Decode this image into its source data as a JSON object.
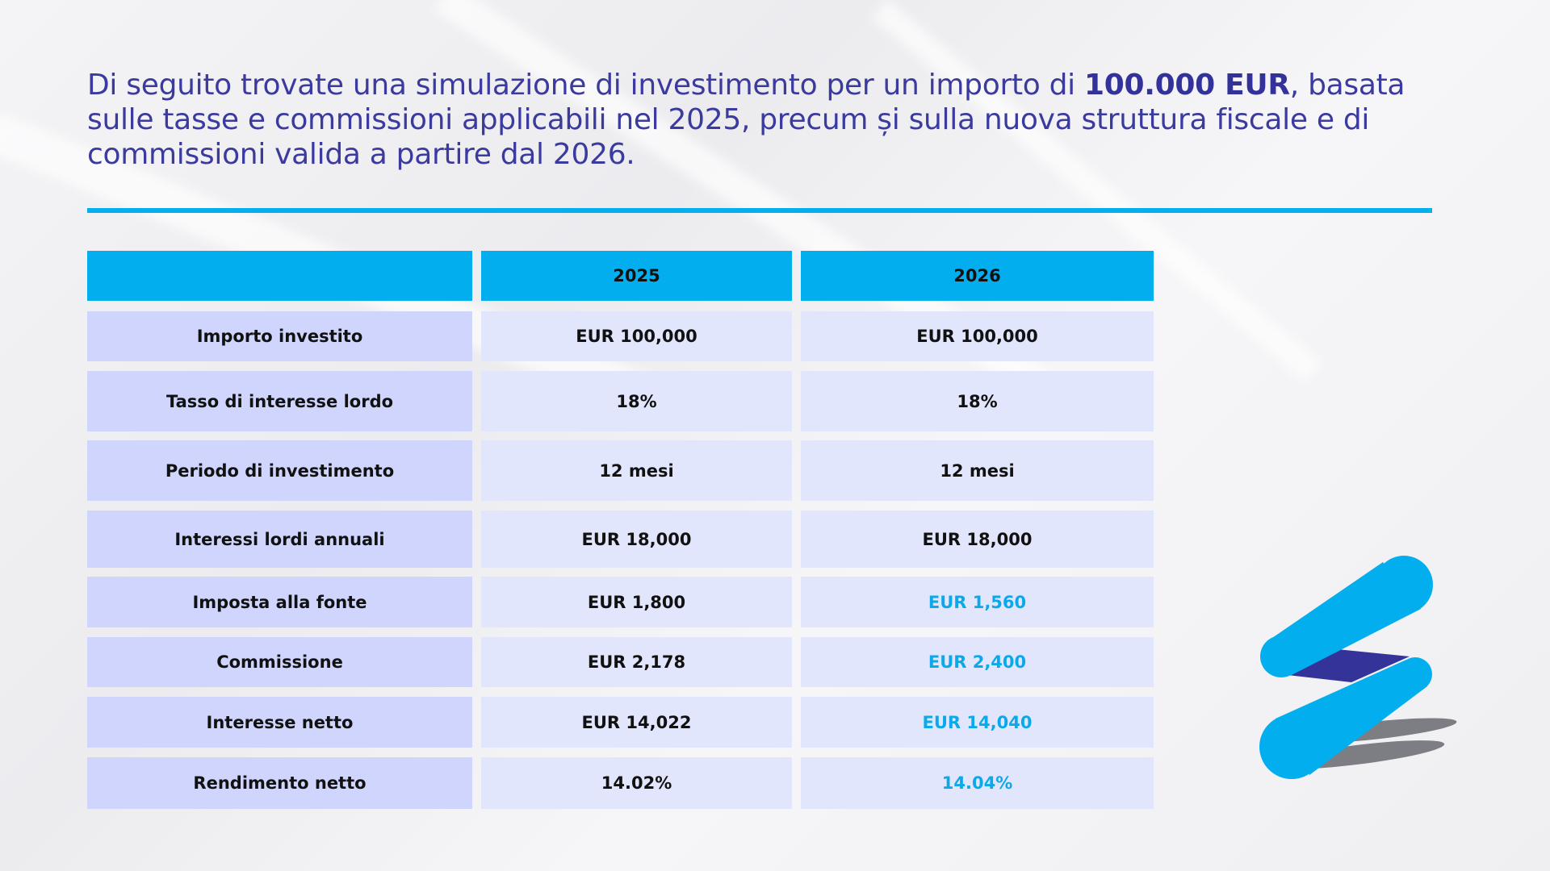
{
  "intro": {
    "before": "Di seguito trovate una simulazione di investimento per un importo di ",
    "amount": "100.000 EUR",
    "after": ", basata sulle tasse e commissioni applicabili nel 2025, precum și sulla nuova struttura fiscale e di commissioni valida a partire dal 2026."
  },
  "table": {
    "headers": [
      "",
      "2025",
      "2026"
    ],
    "rows": [
      {
        "label": "Importo investito",
        "v2025": "EUR 100,000",
        "v2026": "EUR 100,000",
        "changed": false
      },
      {
        "label": "Tasso di interesse lordo",
        "v2025": "18%",
        "v2026": "18%",
        "changed": false
      },
      {
        "label": "Periodo di investimento",
        "v2025": "12 mesi",
        "v2026": "12 mesi",
        "changed": false
      },
      {
        "label": "Interessi lordi annuali",
        "v2025": "EUR 18,000",
        "v2026": "EUR 18,000",
        "changed": false
      },
      {
        "label": "Imposta alla fonte",
        "v2025": "EUR 1,800",
        "v2026": "EUR 1,560",
        "changed": true
      },
      {
        "label": "Commissione",
        "v2025": "EUR 2,178",
        "v2026": "EUR 2,400",
        "changed": true
      },
      {
        "label": "Interesse netto",
        "v2025": "EUR 14,022",
        "v2026": "EUR 14,040",
        "changed": true
      },
      {
        "label": "Rendimento netto",
        "v2025": "14.02%",
        "v2026": "14.04%",
        "changed": true
      }
    ]
  },
  "colors": {
    "accent": "#03aeef",
    "title": "#3b3a9f",
    "label_cell": "#cfd5fd",
    "value_cell": "#e2e6fc",
    "highlight": "#0aa9ea",
    "logo_dark": "#34339a"
  },
  "logo": {
    "icon": "brand-logo-s-icon"
  }
}
